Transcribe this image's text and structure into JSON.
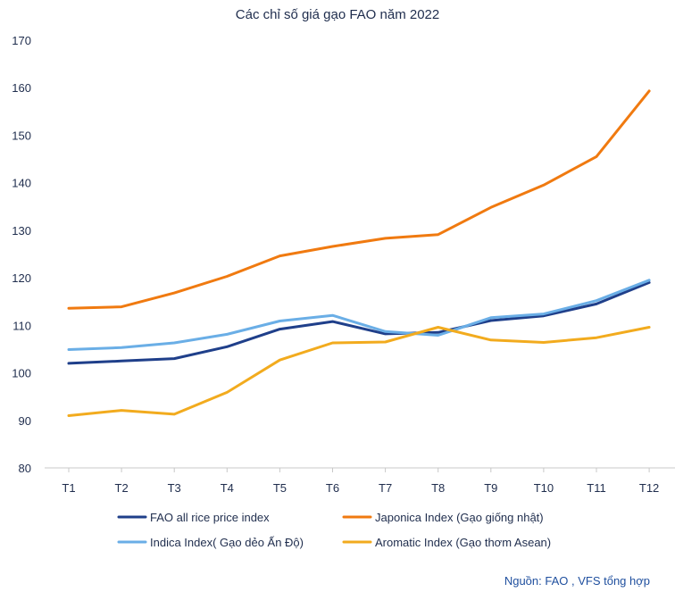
{
  "chart_data": {
    "type": "line",
    "title": "Các chỉ số giá gạo FAO năm 2022",
    "categories": [
      "T1",
      "T2",
      "T3",
      "T4",
      "T5",
      "T6",
      "T7",
      "T8",
      "T9",
      "T10",
      "T11",
      "T12"
    ],
    "ylim": [
      80,
      170
    ],
    "yticks": [
      80,
      90,
      100,
      110,
      120,
      130,
      140,
      150,
      160,
      170
    ],
    "grid": false,
    "legend_position": "bottom",
    "series": [
      {
        "name": "FAO all rice price index",
        "color": "#1f3f8a",
        "values": [
          102.0,
          102.5,
          103.0,
          105.5,
          109.2,
          110.8,
          108.2,
          108.5,
          111.0,
          112.0,
          114.5,
          119.0
        ]
      },
      {
        "name": "Japonica Index (Gạo giống nhật)",
        "color": "#f07a10",
        "values": [
          113.6,
          113.9,
          116.8,
          120.3,
          124.6,
          126.6,
          128.3,
          129.1,
          134.8,
          139.5,
          145.5,
          159.3
        ]
      },
      {
        "name": "Indica Index( Gạo dẻo Ấn Độ)",
        "color": "#6aaee6",
        "values": [
          104.9,
          105.3,
          106.3,
          108.1,
          110.9,
          112.1,
          108.7,
          107.9,
          111.6,
          112.4,
          115.2,
          119.5
        ]
      },
      {
        "name": "Aromatic Index (Gạo thơm Asean)",
        "color": "#f2ab1e",
        "values": [
          91.0,
          92.1,
          91.3,
          95.9,
          102.7,
          106.3,
          106.5,
          109.6,
          106.9,
          106.4,
          107.4,
          109.6
        ]
      }
    ],
    "source": "Nguồn: FAO , VFS tổng hợp"
  }
}
